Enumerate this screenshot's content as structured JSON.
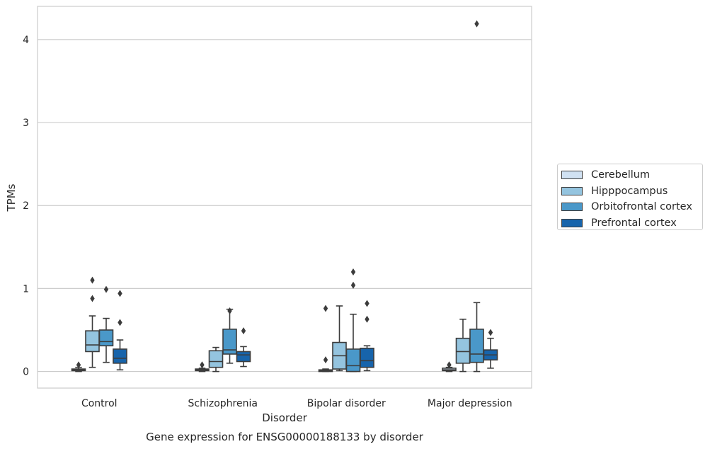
{
  "chart_data": {
    "type": "box",
    "title": "Gene expression for ENSG00000188133 by disorder",
    "xlabel": "Disorder",
    "ylabel": "TPMs",
    "ylim": [
      -0.2,
      4.4
    ],
    "yticks": [
      "0",
      "1",
      "2",
      "3",
      "4"
    ],
    "grid": true,
    "legend_position": "right-center",
    "categories": [
      "Control",
      "Schizophrenia",
      "Bipolar disorder",
      "Major depression"
    ],
    "series": [
      {
        "name": "Cerebellum",
        "color": "#d0e1f2",
        "boxes": [
          {
            "whislo": 0.0,
            "q1": 0.01,
            "med": 0.02,
            "q3": 0.03,
            "whishi": 0.05,
            "fliers": [
              0.08
            ]
          },
          {
            "whislo": 0.0,
            "q1": 0.01,
            "med": 0.02,
            "q3": 0.03,
            "whishi": 0.04,
            "fliers": [
              0.08
            ]
          },
          {
            "whislo": 0.0,
            "q1": 0.0,
            "med": 0.01,
            "q3": 0.02,
            "whishi": 0.03,
            "fliers": [
              0.14,
              0.76
            ]
          },
          {
            "whislo": 0.0,
            "q1": 0.01,
            "med": 0.02,
            "q3": 0.04,
            "whishi": 0.05,
            "fliers": [
              0.08
            ]
          }
        ]
      },
      {
        "name": "Hipppocampus",
        "color": "#94c4df",
        "boxes": [
          {
            "whislo": 0.05,
            "q1": 0.24,
            "med": 0.32,
            "q3": 0.49,
            "whishi": 0.67,
            "fliers": [
              0.88,
              1.1
            ]
          },
          {
            "whislo": 0.0,
            "q1": 0.05,
            "med": 0.12,
            "q3": 0.25,
            "whishi": 0.29,
            "fliers": []
          },
          {
            "whislo": 0.01,
            "q1": 0.03,
            "med": 0.19,
            "q3": 0.35,
            "whishi": 0.79,
            "fliers": []
          },
          {
            "whislo": 0.0,
            "q1": 0.1,
            "med": 0.24,
            "q3": 0.4,
            "whishi": 0.63,
            "fliers": []
          }
        ]
      },
      {
        "name": "Orbitofrontal cortex",
        "color": "#4a98c9",
        "boxes": [
          {
            "whislo": 0.11,
            "q1": 0.31,
            "med": 0.36,
            "q3": 0.5,
            "whishi": 0.64,
            "fliers": [
              0.99
            ]
          },
          {
            "whislo": 0.1,
            "q1": 0.21,
            "med": 0.26,
            "q3": 0.51,
            "whishi": 0.75,
            "fliers": [
              0.73
            ]
          },
          {
            "whislo": 0.0,
            "q1": 0.0,
            "med": 0.07,
            "q3": 0.27,
            "whishi": 0.69,
            "fliers": [
              1.04,
              1.2
            ]
          },
          {
            "whislo": 0.0,
            "q1": 0.11,
            "med": 0.21,
            "q3": 0.51,
            "whishi": 0.83,
            "fliers": [
              4.19
            ]
          }
        ]
      },
      {
        "name": "Prefrontal cortex",
        "color": "#1764ab",
        "boxes": [
          {
            "whislo": 0.02,
            "q1": 0.1,
            "med": 0.16,
            "q3": 0.27,
            "whishi": 0.38,
            "fliers": [
              0.59,
              0.94
            ]
          },
          {
            "whislo": 0.06,
            "q1": 0.12,
            "med": 0.2,
            "q3": 0.24,
            "whishi": 0.3,
            "fliers": [
              0.49
            ]
          },
          {
            "whislo": 0.01,
            "q1": 0.05,
            "med": 0.13,
            "q3": 0.28,
            "whishi": 0.31,
            "fliers": [
              0.63,
              0.82
            ]
          },
          {
            "whislo": 0.04,
            "q1": 0.14,
            "med": 0.2,
            "q3": 0.26,
            "whishi": 0.4,
            "fliers": [
              0.47
            ]
          }
        ]
      }
    ]
  }
}
